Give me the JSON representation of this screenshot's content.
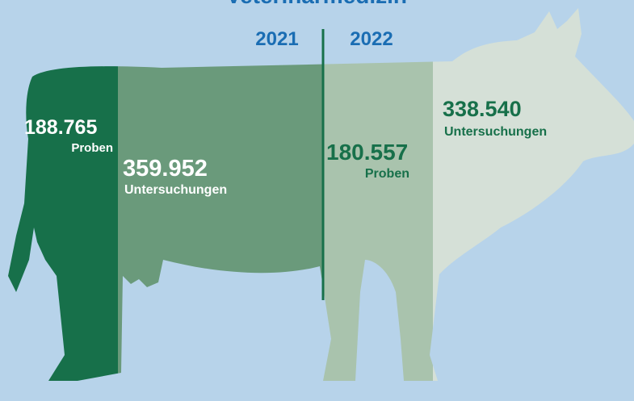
{
  "header": {
    "title": "Veterinärmedizin"
  },
  "years": [
    "2021",
    "2022"
  ],
  "stats": [
    {
      "value": "188.765",
      "label": "Proben"
    },
    {
      "value": "359.952",
      "label": "Untersuchungen"
    },
    {
      "value": "180.557",
      "label": "Proben"
    },
    {
      "value": "338.540",
      "label": "Untersuchungen"
    }
  ]
}
